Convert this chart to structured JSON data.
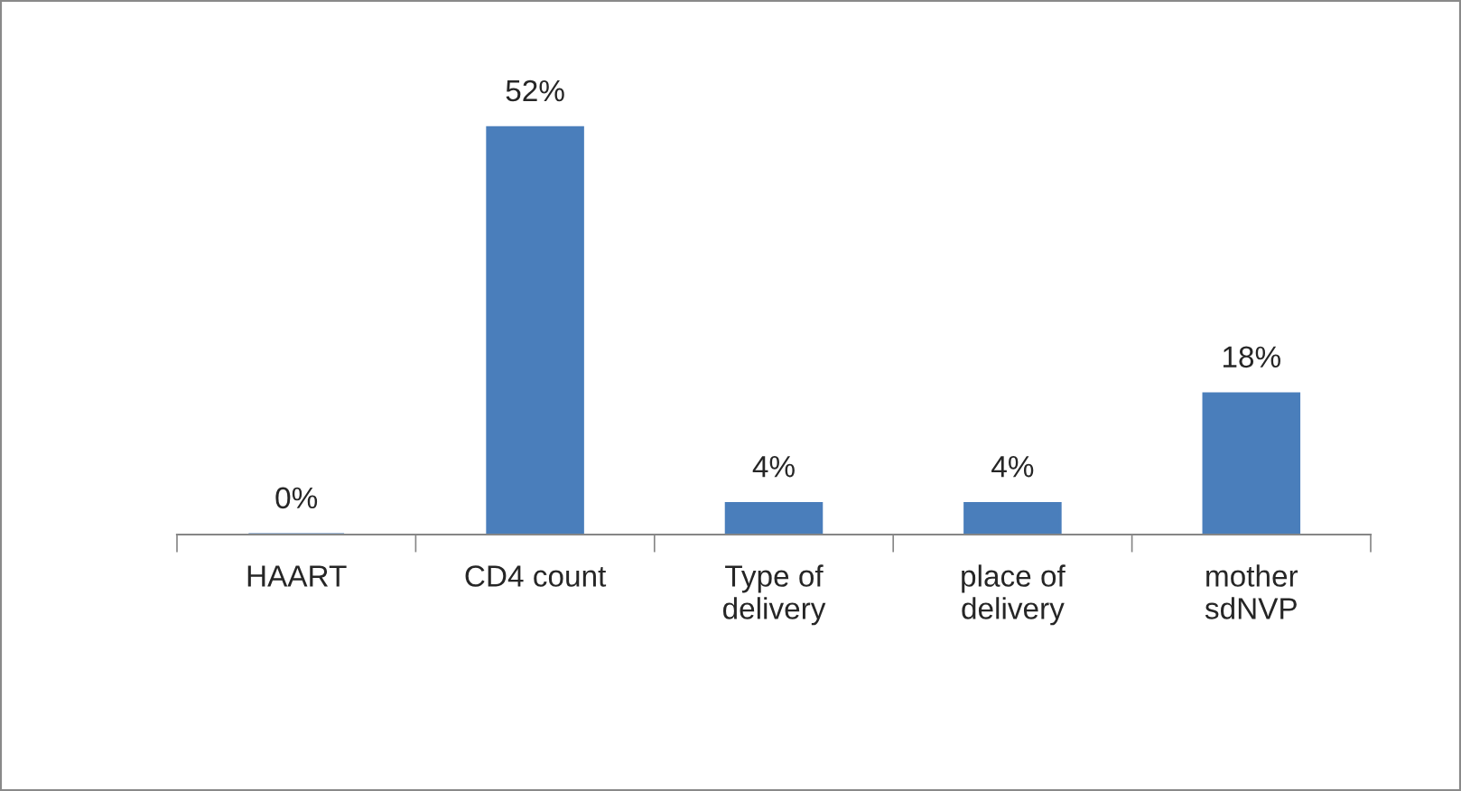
{
  "chart_data": {
    "type": "bar",
    "categories": [
      "HAART",
      "CD4 count",
      "Type of\ndelivery",
      "place of\ndelivery",
      "mother\nsdNVP"
    ],
    "values": [
      0,
      52,
      4,
      4,
      18
    ],
    "value_labels": [
      "0%",
      "52%",
      "4%",
      "4%",
      "18%"
    ],
    "color": "#4a7ebb",
    "grid": false,
    "legend": false
  }
}
